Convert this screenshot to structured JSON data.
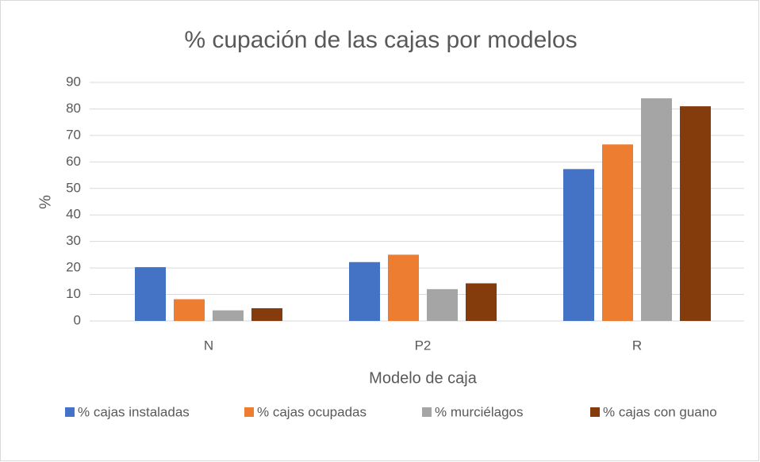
{
  "chart_data": {
    "type": "bar",
    "title": "% cupación de las cajas por modelos",
    "x_label": "Modelo de caja",
    "y_label": "%",
    "categories": [
      "N",
      "P2",
      "R"
    ],
    "series": [
      {
        "name": "% cajas instaladas",
        "color": "#4472c4",
        "values": [
          20.3,
          22.2,
          57.3
        ]
      },
      {
        "name": "% cajas ocupadas",
        "color": "#ed7d31",
        "values": [
          8.2,
          25,
          66.6
        ]
      },
      {
        "name": "% murciélagos",
        "color": "#a5a5a5",
        "values": [
          4,
          12,
          84
        ]
      },
      {
        "name": "% cajas con guano",
        "color": "#843c0c",
        "values": [
          4.8,
          14.2,
          81
        ]
      }
    ],
    "ylim": [
      0,
      90
    ],
    "yticks": [
      0,
      10,
      20,
      30,
      40,
      50,
      60,
      70,
      80,
      90
    ],
    "grid": true,
    "legend": "bottom"
  }
}
